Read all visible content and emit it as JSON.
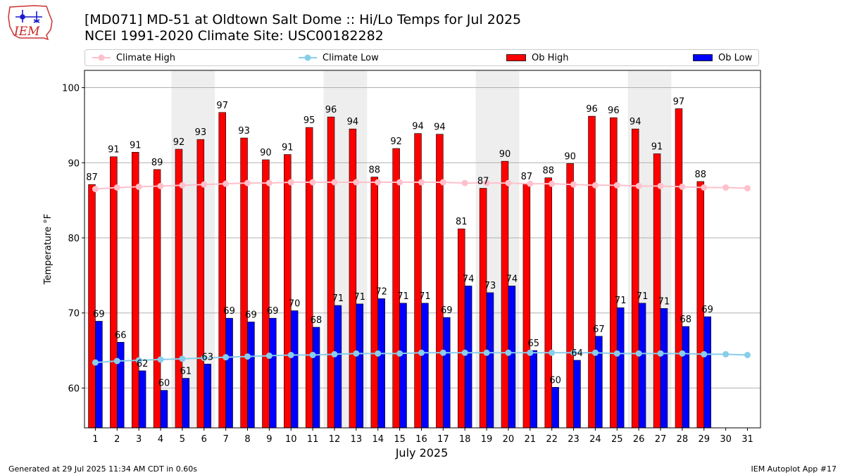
{
  "header": {
    "title": "[MD071] MD-51 at Oldtown Salt Dome  :: Hi/Lo Temps for Jul 2025",
    "subtitle": "NCEI 1991-2020 Climate Site: USC00182282",
    "logo_text": "IEM"
  },
  "legend": {
    "items": [
      {
        "label": "Climate High",
        "kind": "line",
        "color": "#ffc0cb"
      },
      {
        "label": "Climate Low",
        "kind": "line",
        "color": "#87ceeb"
      },
      {
        "label": "Ob High",
        "kind": "bar",
        "color": "#ff0000"
      },
      {
        "label": "Ob Low",
        "kind": "bar",
        "color": "#0000ff"
      }
    ],
    "placement": "top"
  },
  "footer": {
    "left": "Generated at 29 Jul 2025 11:34 AM CDT in 0.60s",
    "right": "IEM Autoplot App #17"
  },
  "chart_data": {
    "type": "bar",
    "xlabel": "July 2025",
    "ylabel": "Temperature °F",
    "ylim": [
      54.7,
      102.3
    ],
    "yticks": [
      60,
      70,
      80,
      90,
      100
    ],
    "grid": true,
    "categories": [
      "1",
      "2",
      "3",
      "4",
      "5",
      "6",
      "7",
      "8",
      "9",
      "10",
      "11",
      "12",
      "13",
      "14",
      "15",
      "16",
      "17",
      "18",
      "19",
      "20",
      "21",
      "22",
      "23",
      "24",
      "25",
      "26",
      "27",
      "28",
      "29",
      "30",
      "31"
    ],
    "weekend_shading_days": [
      [
        5,
        6
      ],
      [
        12,
        13
      ],
      [
        19,
        20
      ],
      [
        26,
        27
      ]
    ],
    "series": [
      {
        "name": "Ob High",
        "type": "bar",
        "color": "#ff0000",
        "values": [
          87.1,
          90.8,
          91.4,
          89.1,
          91.8,
          93.1,
          96.7,
          93.3,
          90.4,
          91.1,
          94.7,
          96.1,
          94.5,
          88.1,
          91.9,
          93.9,
          93.8,
          81.2,
          86.6,
          90.2,
          87.2,
          88.0,
          89.9,
          96.2,
          96.0,
          94.5,
          91.2,
          97.2,
          87.5,
          null,
          null
        ],
        "labels": [
          "87",
          "91",
          "91",
          "89",
          "92",
          "93",
          "97",
          "93",
          "90",
          "91",
          "95",
          "96",
          "94",
          "88",
          "92",
          "94",
          "94",
          "81",
          "87",
          "90",
          "87",
          "88",
          "90",
          "96",
          "96",
          "94",
          "91",
          "97",
          "88",
          "",
          ""
        ]
      },
      {
        "name": "Ob Low",
        "type": "bar",
        "color": "#0000ff",
        "values": [
          68.9,
          66.1,
          62.3,
          59.7,
          61.3,
          63.2,
          69.3,
          68.8,
          69.3,
          70.3,
          68.1,
          71.0,
          71.2,
          71.9,
          71.3,
          71.3,
          69.4,
          73.6,
          72.7,
          73.6,
          65.0,
          60.1,
          63.7,
          66.9,
          70.7,
          71.3,
          70.6,
          68.2,
          69.5,
          null,
          null
        ],
        "labels": [
          "69",
          "66",
          "62",
          "60",
          "61",
          "63",
          "69",
          "69",
          "69",
          "70",
          "68",
          "71",
          "71",
          "72",
          "71",
          "71",
          "69",
          "74",
          "73",
          "74",
          "65",
          "60",
          "64",
          "67",
          "71",
          "71",
          "71",
          "68",
          "69",
          "",
          ""
        ]
      },
      {
        "name": "Climate High",
        "type": "line",
        "color": "#ffc0cb",
        "values": [
          86.5,
          86.7,
          86.8,
          86.9,
          87.0,
          87.1,
          87.2,
          87.3,
          87.3,
          87.4,
          87.4,
          87.4,
          87.4,
          87.4,
          87.4,
          87.4,
          87.4,
          87.3,
          87.3,
          87.3,
          87.2,
          87.2,
          87.1,
          87.0,
          87.0,
          86.9,
          86.9,
          86.8,
          86.7,
          86.7,
          86.6
        ]
      },
      {
        "name": "Climate Low",
        "type": "line",
        "color": "#87ceeb",
        "values": [
          63.4,
          63.6,
          63.7,
          63.8,
          63.9,
          64.0,
          64.1,
          64.2,
          64.3,
          64.4,
          64.4,
          64.5,
          64.6,
          64.6,
          64.6,
          64.7,
          64.7,
          64.7,
          64.7,
          64.7,
          64.7,
          64.7,
          64.7,
          64.7,
          64.6,
          64.6,
          64.6,
          64.6,
          64.5,
          64.5,
          64.4
        ]
      }
    ]
  }
}
